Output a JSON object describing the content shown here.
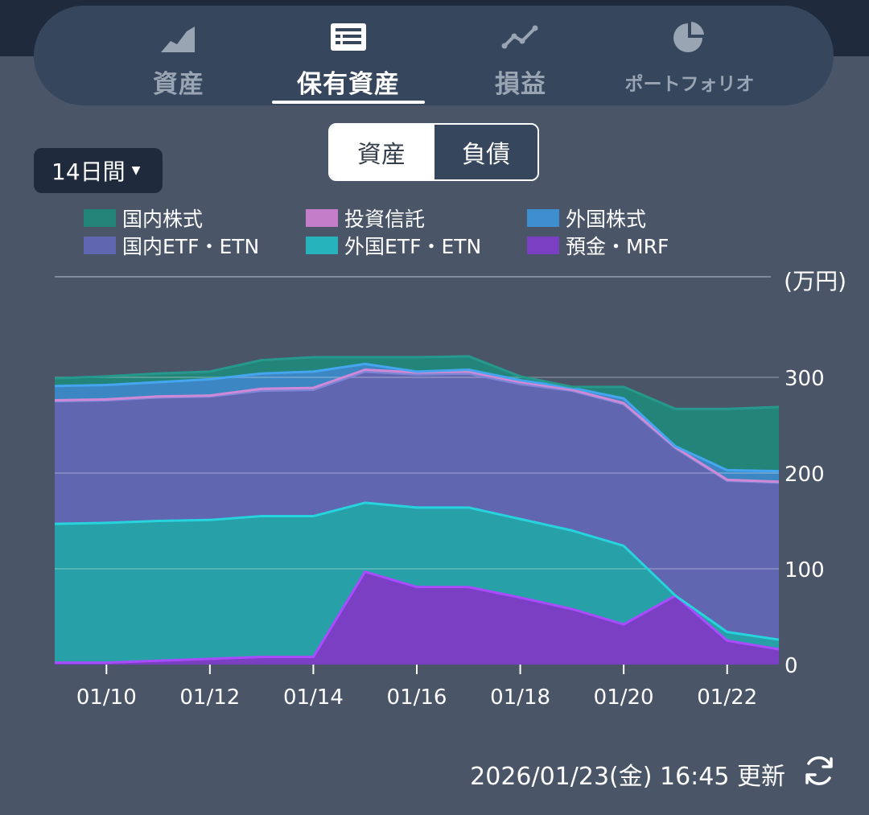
{
  "tabs": [
    {
      "label": "資産",
      "icon": "area-chart-icon",
      "active": false
    },
    {
      "label": "保有資産",
      "icon": "list-icon",
      "active": true
    },
    {
      "label": "損益",
      "icon": "line-chart-icon",
      "active": false
    },
    {
      "label": "ポートフォリオ",
      "icon": "pie-chart-icon",
      "active": false
    }
  ],
  "segment": {
    "asset": "資産",
    "liability": "負債"
  },
  "period": {
    "label": "14日間"
  },
  "updated": {
    "text": "2026/01/23(金) 16:45 更新"
  },
  "chart_data": {
    "type": "area",
    "stacked": true,
    "unit_label": "(万円)",
    "ylim": [
      0,
      400
    ],
    "yticks": [
      0,
      100,
      200,
      300
    ],
    "x": [
      "01/09",
      "01/10",
      "01/11",
      "01/12",
      "01/13",
      "01/14",
      "01/15",
      "01/16",
      "01/17",
      "01/18",
      "01/19",
      "01/20",
      "01/21",
      "01/22",
      "01/23"
    ],
    "xtick_labels": [
      "01/10",
      "01/12",
      "01/14",
      "01/16",
      "01/18",
      "01/20",
      "01/22"
    ],
    "series": [
      {
        "name": "預金・MRF",
        "color": "#7b3fc4",
        "line": "#a94bff",
        "values": [
          2,
          2,
          4,
          6,
          8,
          8,
          97,
          81,
          81,
          70,
          58,
          42,
          72,
          25,
          16
        ]
      },
      {
        "name": "外国ETF・ETN",
        "color": "#27a0a8",
        "line": "#27d3dc",
        "values": [
          145,
          146,
          146,
          145,
          147,
          147,
          72,
          83,
          83,
          82,
          82,
          82,
          0,
          9,
          10
        ]
      },
      {
        "name": "国内ETF・ETN",
        "color": "#6066b0",
        "line": "#7d85d6",
        "values": [
          128,
          128,
          129,
          129,
          131,
          132,
          137,
          139,
          140,
          141,
          146,
          148,
          154,
          158,
          164
        ]
      },
      {
        "name": "投資信託",
        "color": "#9b6aaa",
        "line": "#d089d6",
        "values": [
          1,
          1,
          1,
          1,
          2,
          2,
          2,
          2,
          2,
          2,
          1,
          1,
          1,
          1,
          1
        ]
      },
      {
        "name": "外国株式",
        "color": "#3c86c4",
        "line": "#45a6ef",
        "values": [
          15,
          15,
          15,
          17,
          16,
          17,
          6,
          1,
          2,
          2,
          2,
          5,
          1,
          10,
          11
        ]
      },
      {
        "name": "国内株式",
        "color": "#23857a",
        "line": "#27998c",
        "values": [
          8,
          9,
          9,
          8,
          14,
          15,
          7,
          15,
          14,
          4,
          1,
          12,
          39,
          64,
          67
        ]
      }
    ],
    "legend": [
      "国内株式",
      "投資信託",
      "外国株式",
      "国内ETF・ETN",
      "外国ETF・ETN",
      "預金・MRF"
    ]
  }
}
